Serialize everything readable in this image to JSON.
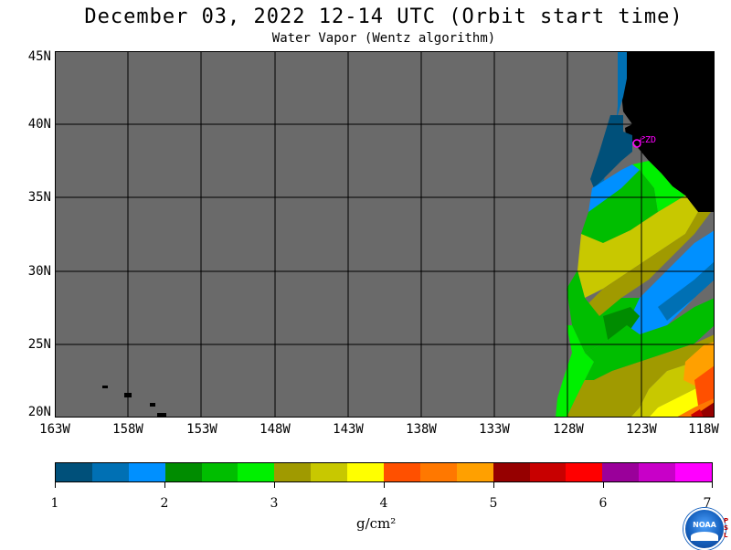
{
  "title": "December 03, 2022  12-14 UTC  (Orbit start time)",
  "subtitle": "Water Vapor (Wentz algorithm)",
  "map": {
    "lat_labels": [
      "45N",
      "40N",
      "35N",
      "30N",
      "25N",
      "20N"
    ],
    "lon_labels": [
      "163W",
      "158W",
      "153W",
      "148W",
      "143W",
      "138W",
      "133W",
      "128W",
      "123W",
      "118W"
    ],
    "station_label": "CZD",
    "colors": {
      "no_data": "#6a6a6a",
      "land": "#000000",
      "grid": "#000000",
      "station": "#ff00ff"
    }
  },
  "colorbar": {
    "unit": "g/cm²",
    "tick_labels": [
      "1",
      "2",
      "3",
      "4",
      "5",
      "6",
      "7"
    ],
    "colors": [
      "#00507a",
      "#0070b4",
      "#0090ff",
      "#008c00",
      "#00be00",
      "#00f000",
      "#a09a00",
      "#c8c800",
      "#ffff00",
      "#ff5000",
      "#ff7800",
      "#ffa000",
      "#960000",
      "#c80000",
      "#ff0000",
      "#9a009a",
      "#c800c8",
      "#ff00ff"
    ]
  },
  "logo": {
    "text": "NOAA",
    "side_text": [
      "P",
      "S",
      "L"
    ]
  }
}
